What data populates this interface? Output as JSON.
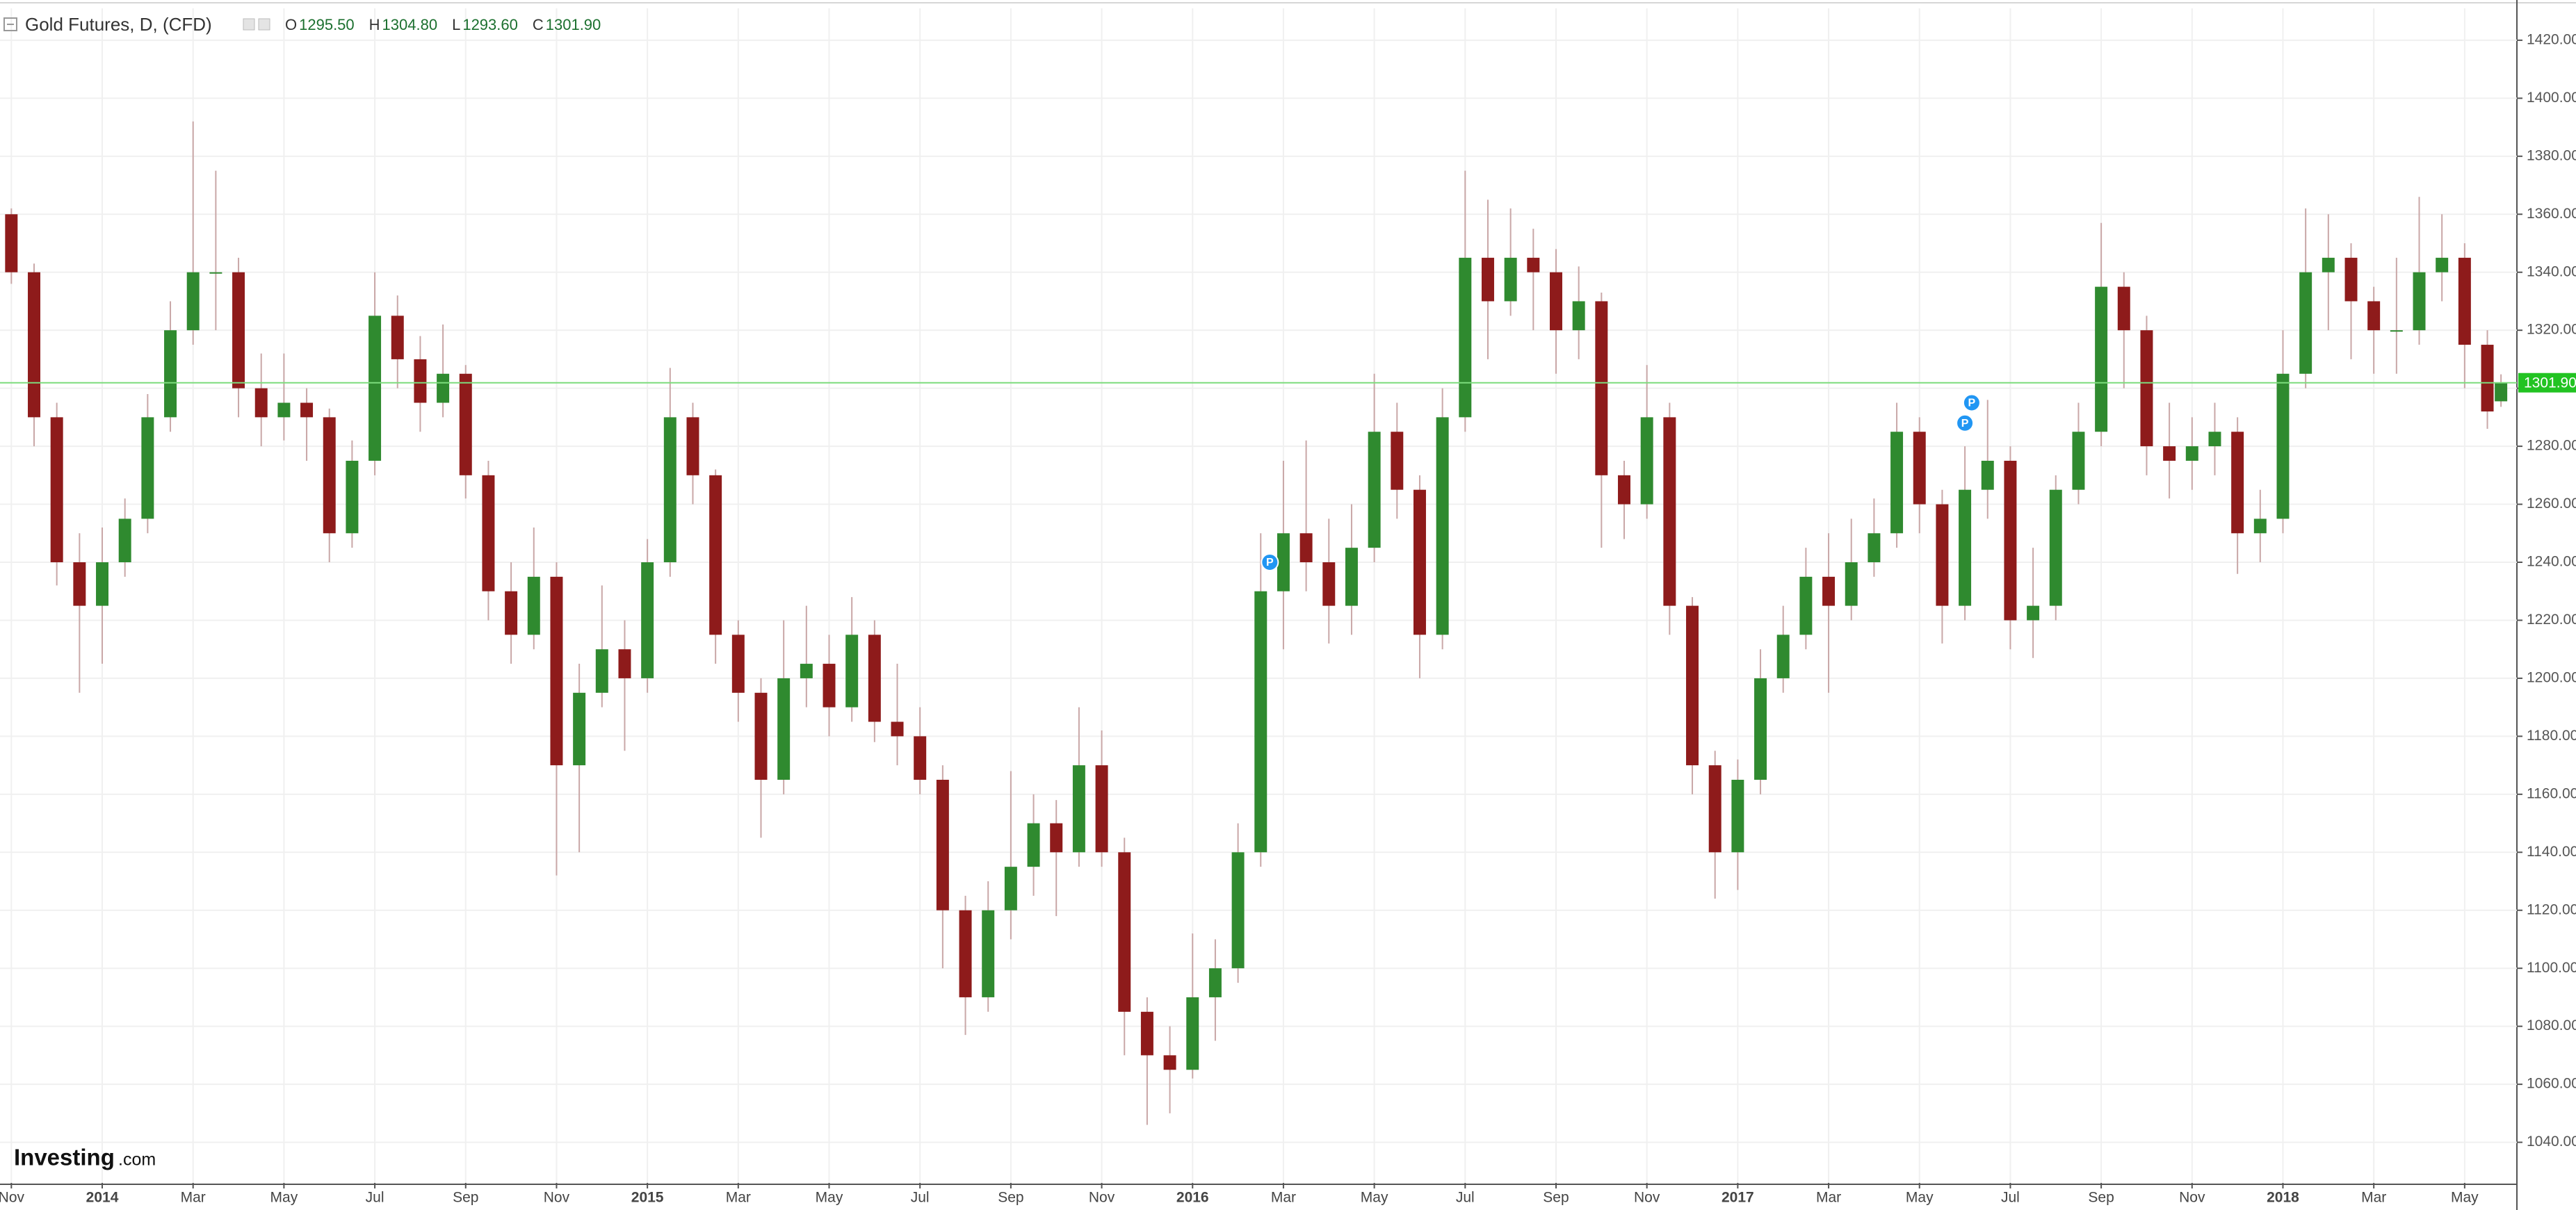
{
  "chart_data": {
    "type": "candlestick",
    "title": "Gold Futures, D, (CFD)",
    "ohlc_header": [
      {
        "key": "O",
        "value": "1295.50"
      },
      {
        "key": "H",
        "value": "1304.80"
      },
      {
        "key": "L",
        "value": "1293.60"
      },
      {
        "key": "C",
        "value": "1301.90"
      }
    ],
    "watermark": {
      "brand": "Investing",
      "suffix": ".com"
    },
    "up_color": "#2f8a2f",
    "down_color": "#8e1b1b",
    "wick_color": "#c9a7a7",
    "grid": true,
    "x": [
      0,
      0.5,
      1,
      1.5,
      2,
      2.5,
      3,
      3.5,
      4,
      4.5,
      5,
      5.5,
      6,
      6.5,
      7,
      7.5,
      8,
      8.5,
      9,
      9.5,
      10,
      10.5,
      11,
      11.5,
      12,
      12.5,
      13,
      13.5,
      14,
      14.5,
      15,
      15.5,
      16,
      16.5,
      17,
      17.5,
      18,
      18.5,
      19,
      19.5,
      20,
      20.5,
      21,
      21.5,
      22,
      22.5,
      23,
      23.5,
      24,
      24.5,
      25,
      25.5,
      26,
      26.5,
      27,
      27.5,
      28,
      28.5,
      29,
      29.5,
      30,
      30.5,
      31,
      31.5,
      32,
      32.5,
      33,
      33.5,
      34,
      34.5,
      35,
      35.5,
      36,
      36.5,
      37,
      37.5,
      38,
      38.5,
      39,
      39.5,
      40,
      40.5,
      41,
      41.5,
      42,
      42.5,
      43,
      43.5,
      44,
      44.5,
      45,
      45.5,
      46,
      46.5,
      47,
      47.5,
      48,
      48.5,
      49,
      49.5,
      50,
      50.5,
      51,
      51.5,
      52,
      52.5,
      53,
      53.5,
      54,
      54.5,
      54.8
    ],
    "open": [
      1360,
      1340,
      1290,
      1240,
      1225,
      1240,
      1255,
      1290,
      1320,
      1340,
      1340,
      1300,
      1290,
      1295,
      1290,
      1250,
      1275,
      1325,
      1310,
      1295,
      1305,
      1270,
      1230,
      1215,
      1235,
      1170,
      1195,
      1210,
      1200,
      1240,
      1290,
      1270,
      1215,
      1195,
      1165,
      1200,
      1205,
      1190,
      1215,
      1185,
      1180,
      1165,
      1120,
      1090,
      1120,
      1135,
      1150,
      1140,
      1170,
      1140,
      1085,
      1070,
      1065,
      1090,
      1100,
      1140,
      1230,
      1250,
      1240,
      1225,
      1245,
      1285,
      1265,
      1215,
      1290,
      1345,
      1330,
      1345,
      1340,
      1320,
      1330,
      1270,
      1260,
      1290,
      1225,
      1170,
      1140,
      1165,
      1200,
      1215,
      1235,
      1225,
      1240,
      1250,
      1285,
      1260,
      1225,
      1265,
      1275,
      1220,
      1225,
      1265,
      1285,
      1335,
      1320,
      1280,
      1275,
      1280,
      1285,
      1250,
      1255,
      1305,
      1340,
      1345,
      1330,
      1320,
      1320,
      1340,
      1345,
      1315,
      1295.5
    ],
    "high": [
      1362,
      1343,
      1295,
      1250,
      1252,
      1262,
      1298,
      1330,
      1392,
      1375,
      1345,
      1312,
      1312,
      1300,
      1293,
      1282,
      1340,
      1332,
      1318,
      1322,
      1308,
      1275,
      1240,
      1252,
      1240,
      1205,
      1232,
      1220,
      1248,
      1307,
      1295,
      1272,
      1220,
      1200,
      1220,
      1225,
      1215,
      1228,
      1220,
      1205,
      1190,
      1170,
      1125,
      1130,
      1168,
      1160,
      1158,
      1190,
      1182,
      1145,
      1090,
      1080,
      1112,
      1110,
      1150,
      1250,
      1275,
      1282,
      1255,
      1260,
      1305,
      1295,
      1270,
      1300,
      1375,
      1365,
      1362,
      1355,
      1348,
      1342,
      1333,
      1275,
      1308,
      1295,
      1228,
      1175,
      1172,
      1210,
      1225,
      1245,
      1250,
      1255,
      1262,
      1295,
      1290,
      1265,
      1280,
      1296,
      1280,
      1245,
      1270,
      1295,
      1357,
      1340,
      1325,
      1295,
      1290,
      1295,
      1290,
      1265,
      1320,
      1362,
      1360,
      1350,
      1335,
      1345,
      1366,
      1360,
      1350,
      1320,
      1304.8
    ],
    "low": [
      1336,
      1280,
      1232,
      1195,
      1205,
      1235,
      1250,
      1285,
      1315,
      1320,
      1290,
      1280,
      1282,
      1275,
      1240,
      1245,
      1270,
      1300,
      1285,
      1290,
      1262,
      1220,
      1205,
      1210,
      1132,
      1140,
      1190,
      1175,
      1195,
      1235,
      1260,
      1205,
      1185,
      1145,
      1160,
      1190,
      1180,
      1185,
      1178,
      1170,
      1160,
      1100,
      1077,
      1085,
      1110,
      1125,
      1118,
      1135,
      1135,
      1070,
      1046,
      1050,
      1062,
      1075,
      1095,
      1135,
      1210,
      1230,
      1212,
      1215,
      1240,
      1255,
      1200,
      1210,
      1285,
      1310,
      1325,
      1320,
      1305,
      1310,
      1245,
      1248,
      1255,
      1215,
      1160,
      1124,
      1127,
      1160,
      1195,
      1210,
      1195,
      1220,
      1235,
      1245,
      1250,
      1212,
      1220,
      1255,
      1210,
      1207,
      1220,
      1260,
      1280,
      1300,
      1270,
      1262,
      1265,
      1270,
      1236,
      1240,
      1250,
      1300,
      1320,
      1310,
      1305,
      1305,
      1315,
      1330,
      1300,
      1286,
      1293.6
    ],
    "close": [
      1340,
      1290,
      1240,
      1225,
      1240,
      1255,
      1290,
      1320,
      1340,
      1340,
      1300,
      1290,
      1295,
      1290,
      1250,
      1275,
      1325,
      1310,
      1295,
      1305,
      1270,
      1230,
      1215,
      1235,
      1170,
      1195,
      1210,
      1200,
      1240,
      1290,
      1270,
      1215,
      1195,
      1165,
      1200,
      1205,
      1190,
      1215,
      1185,
      1180,
      1165,
      1120,
      1090,
      1120,
      1135,
      1150,
      1140,
      1170,
      1140,
      1085,
      1070,
      1065,
      1090,
      1100,
      1140,
      1230,
      1250,
      1240,
      1225,
      1245,
      1285,
      1265,
      1215,
      1290,
      1345,
      1330,
      1345,
      1340,
      1320,
      1330,
      1270,
      1260,
      1290,
      1225,
      1170,
      1140,
      1165,
      1200,
      1215,
      1235,
      1225,
      1240,
      1250,
      1285,
      1260,
      1225,
      1265,
      1275,
      1220,
      1225,
      1265,
      1285,
      1335,
      1320,
      1280,
      1275,
      1280,
      1285,
      1250,
      1255,
      1305,
      1340,
      1345,
      1330,
      1320,
      1320,
      1340,
      1345,
      1315,
      1292,
      1301.9
    ],
    "xlim": [
      -0.25,
      55.15
    ],
    "xticks": [
      {
        "value": 0,
        "label": "Nov"
      },
      {
        "value": 2,
        "label": "2014"
      },
      {
        "value": 4,
        "label": "Mar"
      },
      {
        "value": 6,
        "label": "May"
      },
      {
        "value": 8,
        "label": "Jul"
      },
      {
        "value": 10,
        "label": "Sep"
      },
      {
        "value": 12,
        "label": "Nov"
      },
      {
        "value": 14,
        "label": "2015"
      },
      {
        "value": 16,
        "label": "Mar"
      },
      {
        "value": 18,
        "label": "May"
      },
      {
        "value": 20,
        "label": "Jul"
      },
      {
        "value": 22,
        "label": "Sep"
      },
      {
        "value": 24,
        "label": "Nov"
      },
      {
        "value": 26,
        "label": "2016"
      },
      {
        "value": 28,
        "label": "Mar"
      },
      {
        "value": 30,
        "label": "May"
      },
      {
        "value": 32,
        "label": "Jul"
      },
      {
        "value": 34,
        "label": "Sep"
      },
      {
        "value": 36,
        "label": "Nov"
      },
      {
        "value": 38,
        "label": "2017"
      },
      {
        "value": 40,
        "label": "Mar"
      },
      {
        "value": 42,
        "label": "May"
      },
      {
        "value": 44,
        "label": "Jul"
      },
      {
        "value": 46,
        "label": "Sep"
      },
      {
        "value": 48,
        "label": "Nov"
      },
      {
        "value": 50,
        "label": "2018"
      },
      {
        "value": 52,
        "label": "Mar"
      },
      {
        "value": 54,
        "label": "May"
      }
    ],
    "ylim": [
      1026,
      1431
    ],
    "yticks": [
      {
        "value": 1040,
        "label": "1040.00"
      },
      {
        "value": 1060,
        "label": "1060.00"
      },
      {
        "value": 1080,
        "label": "1080.00"
      },
      {
        "value": 1100,
        "label": "1100.00"
      },
      {
        "value": 1120,
        "label": "1120.00"
      },
      {
        "value": 1140,
        "label": "1140.00"
      },
      {
        "value": 1160,
        "label": "1160.00"
      },
      {
        "value": 1180,
        "label": "1180.00"
      },
      {
        "value": 1200,
        "label": "1200.00"
      },
      {
        "value": 1220,
        "label": "1220.00"
      },
      {
        "value": 1240,
        "label": "1240.00"
      },
      {
        "value": 1260,
        "label": "1260.00"
      },
      {
        "value": 1280,
        "label": "1280.00"
      },
      {
        "value": 1300,
        "label": "1300.00"
      },
      {
        "value": 1320,
        "label": "1320.00"
      },
      {
        "value": 1340,
        "label": "1340.00"
      },
      {
        "value": 1360,
        "label": "1360.00"
      },
      {
        "value": 1380,
        "label": "1380.00"
      },
      {
        "value": 1400,
        "label": "1400.00"
      },
      {
        "value": 1420,
        "label": "1420.00"
      }
    ],
    "last_price": {
      "value": 1301.9,
      "label": "1301.90"
    },
    "markers": [
      {
        "x": 27.7,
        "y": 1240,
        "label": "P"
      },
      {
        "x": 43.0,
        "y": 1288,
        "label": "P"
      },
      {
        "x": 43.15,
        "y": 1295,
        "label": "P"
      }
    ]
  }
}
